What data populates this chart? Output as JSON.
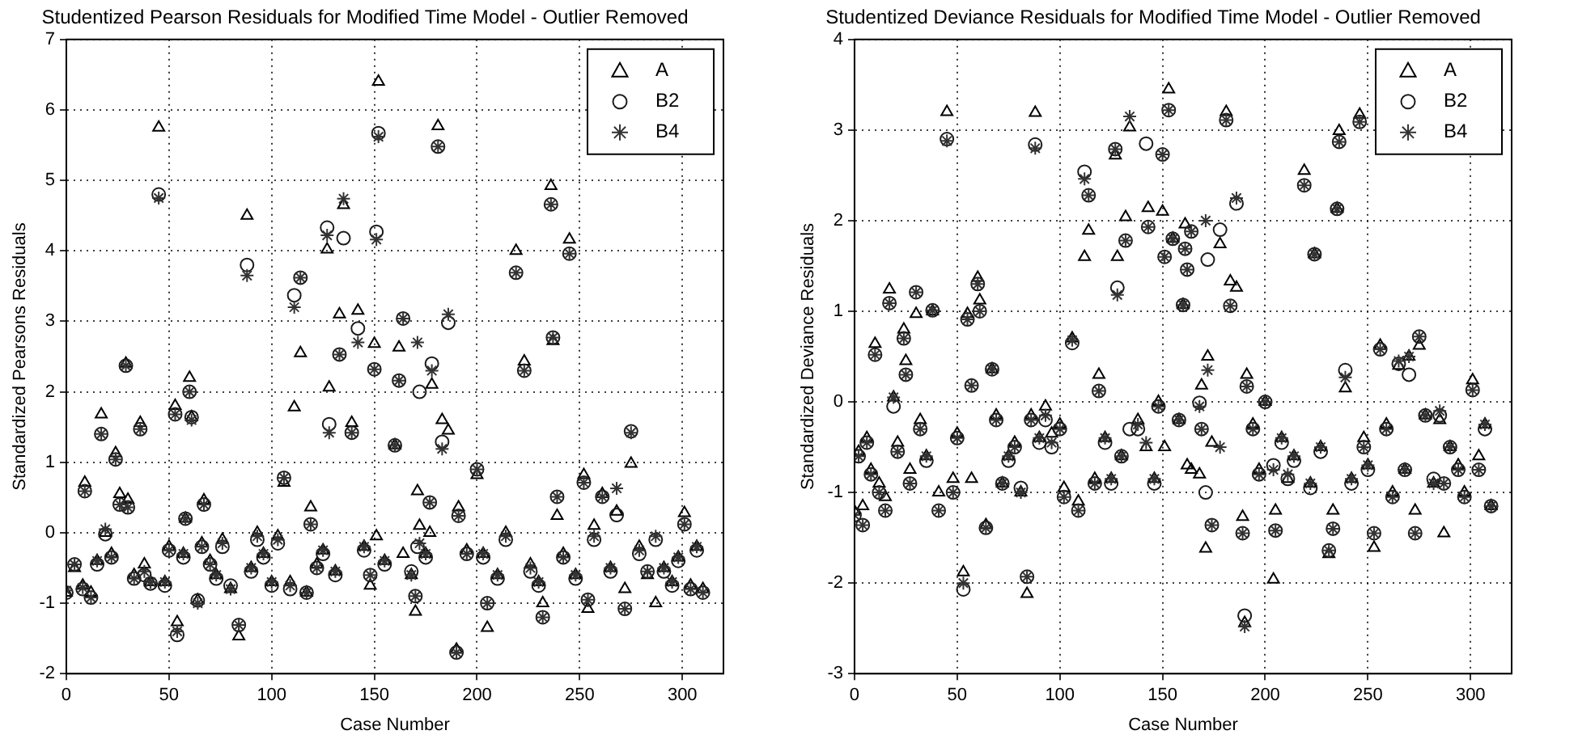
{
  "chart_data": [
    {
      "type": "scatter",
      "title": "Studentized Pearson Residuals for Modified Time Model - Outlier Removed",
      "xlabel": "Case Number",
      "ylabel": "Standardized Pearsons Residuals",
      "xlim": [
        0,
        320
      ],
      "xticks": [
        0,
        50,
        100,
        150,
        200,
        250,
        300
      ],
      "ylim": [
        -2,
        7
      ],
      "yticks": [
        -2,
        -1,
        0,
        1,
        2,
        3,
        4,
        5,
        6,
        7
      ],
      "grid": true,
      "legend": "top right",
      "x": [
        0,
        4,
        8,
        9,
        12,
        15,
        17,
        19,
        22,
        24,
        26,
        29,
        30,
        33,
        36,
        38,
        41,
        45,
        48,
        50,
        53,
        54,
        57,
        58,
        60,
        61,
        64,
        66,
        67,
        70,
        73,
        76,
        80,
        84,
        88,
        90,
        93,
        96,
        100,
        103,
        106,
        109,
        111,
        114,
        117,
        119,
        122,
        125,
        127,
        128,
        131,
        133,
        135,
        139,
        142,
        145,
        148,
        150,
        151,
        152,
        155,
        160,
        162,
        164,
        168,
        170,
        171,
        172,
        175,
        177,
        178,
        181,
        183,
        186,
        190,
        191,
        195,
        200,
        203,
        205,
        210,
        214,
        219,
        223,
        226,
        230,
        232,
        236,
        237,
        239,
        242,
        245,
        248,
        252,
        254,
        257,
        261,
        265,
        268,
        272,
        275,
        279,
        283,
        287,
        291,
        295,
        298,
        301,
        304,
        307,
        310
      ],
      "series": [
        {
          "name": "A",
          "color": "#000000",
          "marker": "triangle",
          "values": [
            -0.85,
            -0.5,
            -0.75,
            0.71,
            -0.85,
            -0.4,
            1.68,
            0,
            -0.3,
            1.13,
            0.55,
            2.4,
            0.47,
            -0.6,
            1.56,
            -0.45,
            -0.7,
            5.75,
            -0.7,
            -0.2,
            1.8,
            -1.27,
            -0.3,
            0.2,
            2.2,
            1.64,
            -0.96,
            -0.15,
            0.46,
            -0.4,
            -0.6,
            -0.1,
            -0.8,
            -1.47,
            4.5,
            -0.5,
            0,
            -0.3,
            -0.7,
            -0.05,
            0.71,
            -0.7,
            1.78,
            2.55,
            -0.85,
            0.36,
            -0.45,
            -0.25,
            4.02,
            2.06,
            -0.55,
            3.1,
            4.65,
            1.56,
            3.15,
            -0.2,
            -0.75,
            2.68,
            -0.05,
            6.4,
            -0.4,
            1.24,
            2.63,
            -0.3,
            -0.6,
            -1.12,
            0.59,
            0.1,
            -0.3,
            0,
            2.1,
            5.77,
            1.6,
            1.45,
            -1.66,
            0.36,
            -0.25,
            0.82,
            -0.3,
            -1.35,
            -0.6,
            0,
            4,
            2.43,
            -0.45,
            -0.7,
            -1,
            4.92,
            2.72,
            0.24,
            -0.3,
            4.16,
            -0.6,
            0.82,
            -1.08,
            0.1,
            0.55,
            -0.5,
            0.3,
            -0.8,
            0.98,
            -0.2,
            -0.6,
            -1,
            -0.5,
            -0.7,
            -0.35,
            0.28,
            -0.75,
            -0.2,
            -0.8
          ]
        },
        {
          "name": "B2",
          "color": "#1a1a1a",
          "marker": "circle",
          "values": [
            -0.85,
            -0.45,
            -0.8,
            0.59,
            -0.92,
            -0.45,
            1.4,
            -0.02,
            -0.35,
            1.04,
            0.4,
            2.37,
            0.36,
            -0.65,
            1.47,
            -0.6,
            -0.72,
            4.8,
            -0.75,
            -0.25,
            1.68,
            -1.45,
            -0.35,
            0.2,
            2,
            1.64,
            -0.96,
            -0.2,
            0.4,
            -0.45,
            -0.65,
            -0.2,
            -0.75,
            -1.31,
            3.8,
            -0.55,
            -0.1,
            -0.35,
            -0.75,
            -0.15,
            0.78,
            -0.8,
            3.37,
            3.62,
            -0.85,
            0.12,
            -0.5,
            -0.3,
            4.33,
            1.54,
            -0.6,
            2.53,
            4.18,
            1.42,
            2.9,
            -0.25,
            -0.6,
            2.32,
            4.27,
            5.67,
            -0.45,
            1.24,
            2.16,
            3.04,
            -0.55,
            -0.9,
            -0.2,
            2,
            -0.35,
            0.43,
            2.4,
            5.48,
            1.29,
            2.98,
            -1.7,
            0.24,
            -0.3,
            0.9,
            -0.35,
            -1,
            -0.65,
            -0.1,
            3.69,
            2.3,
            -0.55,
            -0.75,
            -1.2,
            4.66,
            2.77,
            0.51,
            -0.35,
            3.96,
            -0.65,
            0.71,
            -0.95,
            -0.1,
            0.51,
            -0.55,
            0.25,
            -1.08,
            1.44,
            -0.3,
            -0.55,
            -0.1,
            -0.55,
            -0.75,
            -0.4,
            0.12,
            -0.8,
            -0.25,
            -0.85
          ]
        },
        {
          "name": "B4",
          "color": "#333333",
          "marker": "cross",
          "values": [
            -0.82,
            -0.45,
            -0.78,
            0.59,
            -0.92,
            -0.4,
            1.4,
            0.05,
            -0.35,
            1.04,
            0.4,
            2.37,
            0.36,
            -0.65,
            1.47,
            -0.55,
            -0.7,
            4.75,
            -0.7,
            -0.25,
            1.68,
            -1.4,
            -0.3,
            0.2,
            2,
            1.6,
            -1,
            -0.2,
            0.4,
            -0.45,
            -0.6,
            -0.15,
            -0.8,
            -1.31,
            3.65,
            -0.5,
            -0.05,
            -0.3,
            -0.7,
            -0.1,
            0.78,
            -0.75,
            3.2,
            3.62,
            -0.85,
            0.12,
            -0.5,
            -0.25,
            4.22,
            1.42,
            -0.55,
            2.53,
            4.74,
            1.42,
            2.7,
            -0.2,
            -0.6,
            2.32,
            4.16,
            5.62,
            -0.4,
            1.24,
            2.16,
            3.04,
            -0.6,
            -0.9,
            2.7,
            -0.15,
            -0.3,
            0.43,
            2.3,
            5.48,
            1.19,
            3.1,
            -1.7,
            0.24,
            -0.3,
            0.9,
            -0.3,
            -1,
            -0.6,
            -0.05,
            3.69,
            2.3,
            -0.5,
            -0.7,
            -1.2,
            4.66,
            2.77,
            0.51,
            -0.35,
            3.96,
            -0.6,
            0.71,
            -0.95,
            -0.05,
            0.51,
            -0.5,
            0.63,
            -1.08,
            1.42,
            -0.25,
            -0.55,
            -0.05,
            -0.5,
            -0.7,
            -0.35,
            0.12,
            -0.8,
            -0.2,
            -0.85
          ]
        }
      ]
    },
    {
      "type": "scatter",
      "title": "Studentized Deviance Residuals for Modified Time Model - Outlier Removed",
      "xlabel": "Case Number",
      "ylabel": "Standardized Deviance Residuals",
      "xlim": [
        0,
        320
      ],
      "xticks": [
        0,
        50,
        100,
        150,
        200,
        250,
        300
      ],
      "ylim": [
        -3,
        4
      ],
      "yticks": [
        -3,
        -2,
        -1,
        0,
        1,
        2,
        3,
        4
      ],
      "grid": true,
      "legend": "top right",
      "x": [
        0,
        2,
        4,
        6,
        8,
        10,
        12,
        15,
        17,
        19,
        21,
        24,
        25,
        27,
        30,
        32,
        35,
        38,
        41,
        45,
        48,
        50,
        53,
        55,
        57,
        60,
        61,
        64,
        67,
        69,
        72,
        75,
        78,
        81,
        84,
        86,
        88,
        90,
        93,
        96,
        100,
        102,
        106,
        109,
        112,
        114,
        117,
        119,
        122,
        125,
        127,
        128,
        130,
        132,
        134,
        138,
        142,
        143,
        146,
        148,
        150,
        151,
        153,
        155,
        158,
        160,
        161,
        162,
        164,
        168,
        169,
        171,
        172,
        174,
        178,
        181,
        183,
        186,
        189,
        190,
        191,
        194,
        197,
        200,
        204,
        205,
        208,
        211,
        214,
        219,
        222,
        224,
        227,
        231,
        233,
        235,
        236,
        239,
        242,
        246,
        248,
        250,
        253,
        256,
        259,
        262,
        265,
        268,
        270,
        273,
        275,
        278,
        282,
        285,
        287,
        290,
        294,
        297,
        301,
        304,
        307,
        310
      ],
      "series": [
        {
          "name": "A",
          "color": "#000000",
          "marker": "triangle",
          "values": [
            -1.21,
            -0.55,
            -1.15,
            -0.4,
            -0.75,
            0.64,
            -0.9,
            -1.05,
            1.24,
            0.05,
            -0.45,
            0.8,
            0.45,
            -0.75,
            0.97,
            -0.2,
            -0.6,
            1,
            -1,
            3.2,
            -0.85,
            -0.35,
            -1.88,
            0.97,
            -0.85,
            1.37,
            1.12,
            -1.36,
            0.36,
            -0.15,
            -0.9,
            -0.6,
            -0.45,
            -1,
            -2.12,
            -0.15,
            3.19,
            -0.4,
            -0.05,
            -0.35,
            -0.25,
            -0.95,
            0.7,
            -1.1,
            1.6,
            1.89,
            -0.85,
            0.3,
            -0.4,
            -0.85,
            2.72,
            1.6,
            -0.6,
            2.04,
            3.03,
            -0.2,
            -0.5,
            2.14,
            -0.85,
            0,
            2.1,
            -0.5,
            3.45,
            1.8,
            -0.2,
            1.07,
            1.96,
            -0.7,
            -0.75,
            -0.8,
            0.18,
            -1.62,
            0.5,
            -0.45,
            1.74,
            3.2,
            1.33,
            1.26,
            -1.27,
            -2.44,
            0.3,
            -0.25,
            -0.75,
            0,
            -1.96,
            -1.2,
            -0.4,
            -0.85,
            -0.6,
            2.55,
            -0.9,
            1.63,
            -0.5,
            -1.68,
            -1.2,
            2.13,
            2.99,
            0.15,
            -0.85,
            3.17,
            -0.4,
            -0.7,
            -1.61,
            0.62,
            -0.25,
            -1,
            0.4,
            -0.75,
            0.5,
            -1.2,
            0.62,
            -0.15,
            -0.9,
            -0.2,
            -1.45,
            -0.5,
            -0.7,
            -1,
            0.24,
            -0.6,
            -0.25,
            -1.15
          ]
        },
        {
          "name": "B2",
          "color": "#1a1a1a",
          "marker": "circle",
          "values": [
            -1.25,
            -0.6,
            -1.36,
            -0.45,
            -0.8,
            0.52,
            -1,
            -1.2,
            1.09,
            -0.05,
            -0.55,
            0.7,
            0.3,
            -0.9,
            1.21,
            -0.3,
            -0.65,
            1.01,
            -1.2,
            2.9,
            -1,
            -0.4,
            -2.07,
            0.91,
            0.18,
            1.3,
            1,
            -1.39,
            0.36,
            -0.2,
            -0.9,
            -0.65,
            -0.5,
            -0.95,
            -1.93,
            -0.2,
            2.84,
            -0.45,
            -0.2,
            -0.5,
            -0.3,
            -1.05,
            0.65,
            -1.2,
            2.54,
            2.28,
            -0.9,
            0.12,
            -0.45,
            -0.9,
            2.79,
            1.26,
            -0.6,
            1.78,
            -0.3,
            -0.3,
            2.85,
            1.93,
            -0.9,
            -0.05,
            2.73,
            1.6,
            3.22,
            1.8,
            -0.2,
            1.07,
            1.69,
            1.46,
            1.88,
            -0.01,
            -0.3,
            -1,
            1.57,
            -1.36,
            1.9,
            3.11,
            1.06,
            2.19,
            -1.45,
            -2.36,
            0.17,
            -0.3,
            -0.8,
            0,
            -0.7,
            -1.42,
            -0.45,
            -0.85,
            -0.65,
            2.39,
            -0.95,
            1.63,
            -0.55,
            -1.64,
            -1.4,
            2.13,
            2.87,
            0.35,
            -0.9,
            3.09,
            -0.5,
            -0.75,
            -1.45,
            0.58,
            -0.3,
            -1.05,
            0.42,
            -0.75,
            0.3,
            -1.45,
            0.72,
            -0.15,
            -0.85,
            -0.15,
            -0.9,
            -0.5,
            -0.75,
            -1.05,
            0.13,
            -0.75,
            -0.3,
            -1.15
          ]
        },
        {
          "name": "B4",
          "color": "#333333",
          "marker": "cross",
          "values": [
            -1.25,
            -0.6,
            -1.36,
            -0.45,
            -0.8,
            0.52,
            -1,
            -1.2,
            1.09,
            0.05,
            -0.55,
            0.7,
            0.3,
            -0.9,
            1.21,
            -0.3,
            -0.6,
            1.01,
            -1.2,
            2.88,
            -1,
            -0.4,
            -2,
            0.91,
            0.18,
            1.3,
            1,
            -1.39,
            0.36,
            -0.2,
            -0.9,
            -0.6,
            -0.5,
            -1,
            -1.93,
            -0.2,
            2.8,
            -0.4,
            -0.15,
            -0.45,
            -0.3,
            -1.05,
            0.68,
            -1.2,
            2.46,
            2.28,
            -0.9,
            0.12,
            -0.4,
            -0.85,
            2.79,
            1.18,
            -0.6,
            1.78,
            3.15,
            -0.25,
            -0.45,
            1.93,
            -0.85,
            -0.05,
            2.73,
            1.6,
            3.22,
            1.8,
            -0.2,
            1.07,
            1.69,
            1.46,
            1.88,
            -0.05,
            -0.3,
            2,
            0.35,
            -1.36,
            -0.5,
            3.11,
            1.06,
            2.25,
            -1.45,
            -2.48,
            0.17,
            -0.3,
            -0.8,
            0,
            -0.75,
            -1.42,
            -0.4,
            -0.8,
            -0.6,
            2.39,
            -0.9,
            1.63,
            -0.5,
            -1.64,
            -1.4,
            2.13,
            2.87,
            0.27,
            -0.85,
            3.09,
            -0.5,
            -0.7,
            -1.45,
            0.58,
            -0.3,
            -1.05,
            0.45,
            -0.75,
            0.5,
            -1.45,
            0.72,
            -0.15,
            -0.9,
            -0.1,
            -0.9,
            -0.5,
            -0.75,
            -1.05,
            0.13,
            -0.75,
            -0.25,
            -1.15
          ]
        }
      ]
    }
  ]
}
